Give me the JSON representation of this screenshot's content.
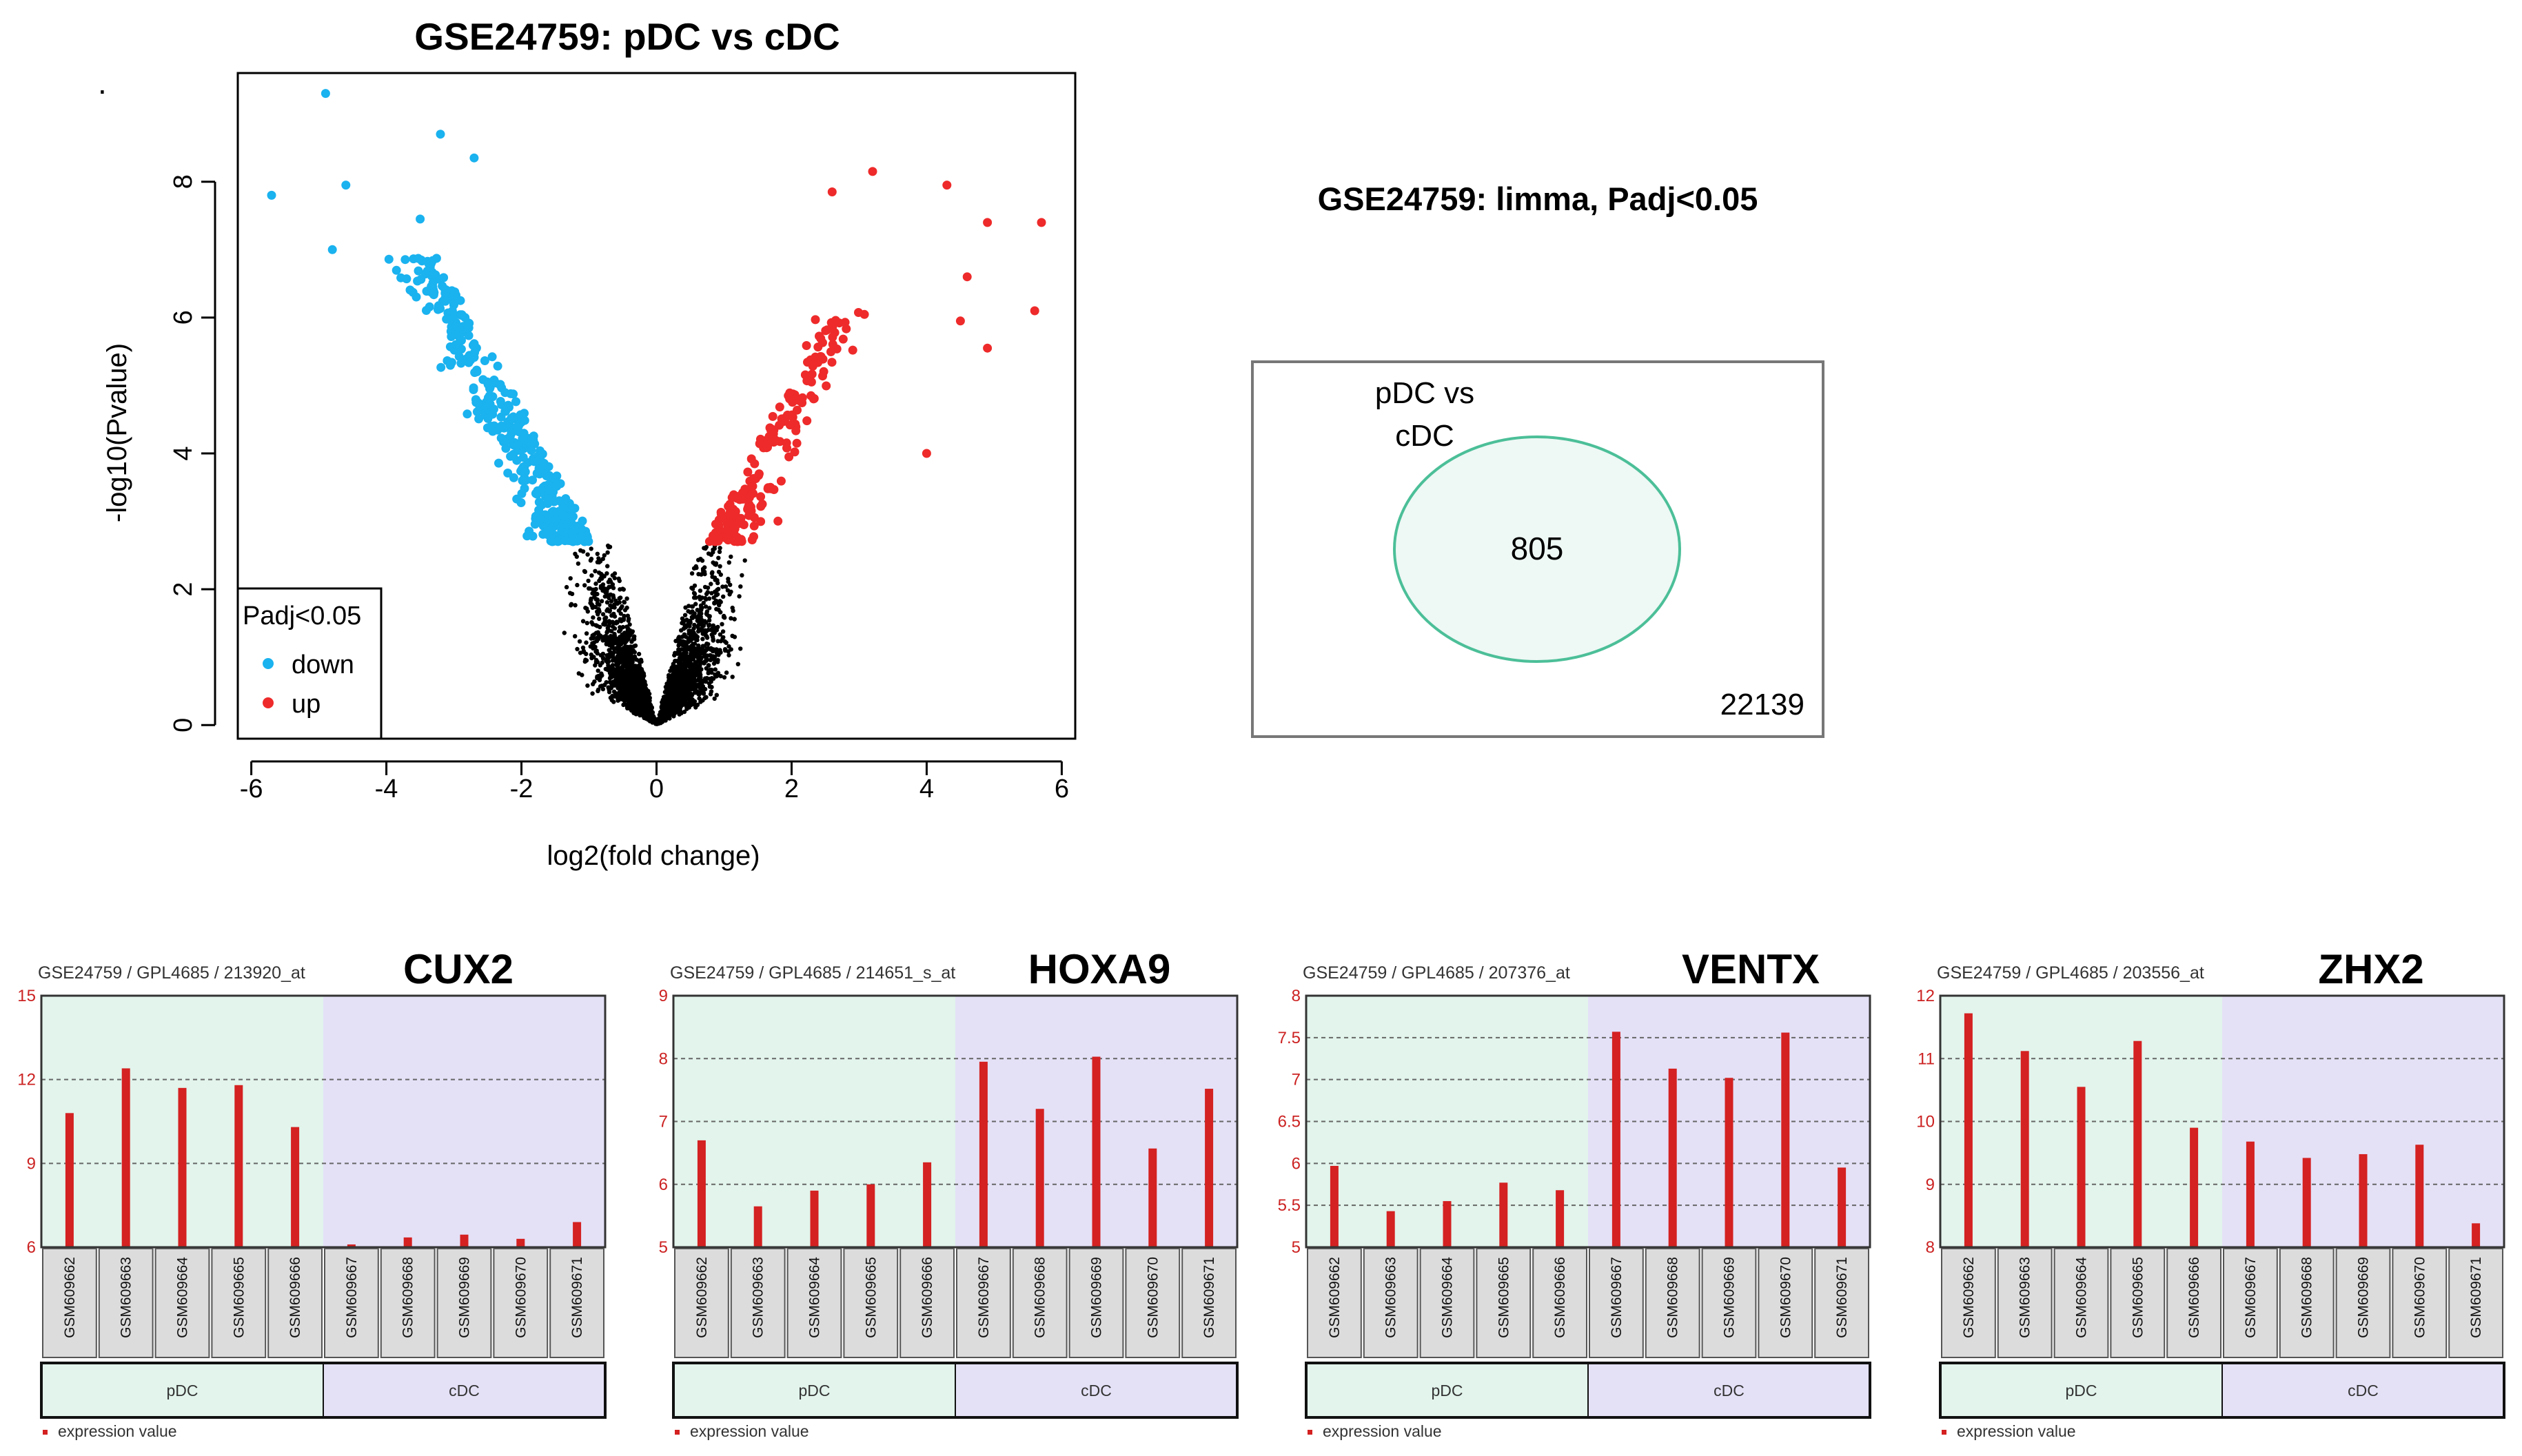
{
  "stray_mark": ".",
  "chart_data": [
    {
      "type": "scatter",
      "title": "GSE24759: pDC vs cDC",
      "xlabel": "log2(fold change)",
      "ylabel": "-log10(Pvalue)",
      "xlim": [
        -6.2,
        6.2
      ],
      "ylim": [
        -0.2,
        9.6
      ],
      "xticks": [
        "-6",
        "-4",
        "-2",
        "0",
        "2",
        "4",
        "6"
      ],
      "yticks": [
        "0",
        "2",
        "4",
        "6",
        "8"
      ],
      "legend": {
        "title": "Padj<0.05",
        "position": "bottom-left",
        "entries": [
          {
            "label": "down",
            "color": "#1ab2ef"
          },
          {
            "label": "up",
            "color": "#ee2a2a"
          }
        ]
      },
      "significance_threshold": 2.7,
      "counts": {
        "background": 2600,
        "down": 420,
        "up": 200
      },
      "colors": {
        "background": "#000000",
        "down": "#1ab2ef",
        "up": "#ee2a2a"
      },
      "extreme_points": [
        {
          "x": -4.9,
          "y": 9.3,
          "group": "down"
        },
        {
          "x": -5.7,
          "y": 7.8,
          "group": "down"
        },
        {
          "x": -4.6,
          "y": 7.95,
          "group": "down"
        },
        {
          "x": -4.8,
          "y": 7.0,
          "group": "down"
        },
        {
          "x": -3.2,
          "y": 8.7,
          "group": "down"
        },
        {
          "x": -2.7,
          "y": 8.35,
          "group": "down"
        },
        {
          "x": -3.5,
          "y": 7.45,
          "group": "down"
        },
        {
          "x": 3.2,
          "y": 8.15,
          "group": "up"
        },
        {
          "x": 4.3,
          "y": 7.95,
          "group": "up"
        },
        {
          "x": 5.7,
          "y": 7.4,
          "group": "up"
        },
        {
          "x": 4.9,
          "y": 7.4,
          "group": "up"
        },
        {
          "x": 5.6,
          "y": 6.1,
          "group": "up"
        },
        {
          "x": 2.6,
          "y": 7.85,
          "group": "up"
        },
        {
          "x": 4.6,
          "y": 6.6,
          "group": "up"
        },
        {
          "x": 4.0,
          "y": 4.0,
          "group": "up"
        },
        {
          "x": 4.9,
          "y": 5.55,
          "group": "up"
        },
        {
          "x": 4.5,
          "y": 5.95,
          "group": "up"
        }
      ]
    },
    {
      "type": "venn",
      "title": "GSE24759: limma, Padj<0.05",
      "set_label": [
        "pDC vs",
        "cDC"
      ],
      "inside_count": "805",
      "outside_count": "22139",
      "circle_fill": "#eef8f4",
      "circle_stroke": "#4cbf98"
    },
    {
      "type": "bar",
      "gene": "CUX2",
      "subtitle": "GSE24759 / GPL4685 / 213920_at",
      "yticks": [
        "6",
        "9",
        "12",
        "15"
      ],
      "ylim": [
        6,
        15
      ],
      "categories": [
        "GSM609662",
        "GSM609663",
        "GSM609664",
        "GSM609665",
        "GSM609666",
        "GSM609667",
        "GSM609668",
        "GSM609669",
        "GSM609670",
        "GSM609671"
      ],
      "values": [
        10.8,
        12.4,
        11.7,
        11.8,
        10.3,
        6.1,
        6.35,
        6.45,
        6.3,
        6.9
      ],
      "groups": [
        "pDC",
        "cDC"
      ],
      "legend": "expression value"
    },
    {
      "type": "bar",
      "gene": "HOXA9",
      "subtitle": "GSE24759 / GPL4685 / 214651_s_at",
      "yticks": [
        "5",
        "6",
        "7",
        "8",
        "9"
      ],
      "ylim": [
        5,
        9
      ],
      "categories": [
        "GSM609662",
        "GSM609663",
        "GSM609664",
        "GSM609665",
        "GSM609666",
        "GSM609667",
        "GSM609668",
        "GSM609669",
        "GSM609670",
        "GSM609671"
      ],
      "values": [
        6.7,
        5.65,
        5.9,
        6.0,
        6.35,
        7.95,
        7.2,
        8.03,
        6.57,
        7.52
      ],
      "groups": [
        "pDC",
        "cDC"
      ],
      "legend": "expression value"
    },
    {
      "type": "bar",
      "gene": "VENTX",
      "subtitle": "GSE24759 / GPL4685 / 207376_at",
      "yticks": [
        "5",
        "5.5",
        "6",
        "6.5",
        "7",
        "7.5",
        "8"
      ],
      "ylim": [
        5,
        8
      ],
      "categories": [
        "GSM609662",
        "GSM609663",
        "GSM609664",
        "GSM609665",
        "GSM609666",
        "GSM609667",
        "GSM609668",
        "GSM609669",
        "GSM609670",
        "GSM609671"
      ],
      "values": [
        5.97,
        5.43,
        5.55,
        5.77,
        5.68,
        7.57,
        7.13,
        7.02,
        7.56,
        5.95
      ],
      "groups": [
        "pDC",
        "cDC"
      ],
      "legend": "expression value"
    },
    {
      "type": "bar",
      "gene": "ZHX2",
      "subtitle": "GSE24759 / GPL4685 / 203556_at",
      "yticks": [
        "8",
        "9",
        "10",
        "11",
        "12"
      ],
      "ylim": [
        8,
        12
      ],
      "categories": [
        "GSM609662",
        "GSM609663",
        "GSM609664",
        "GSM609665",
        "GSM609666",
        "GSM609667",
        "GSM609668",
        "GSM609669",
        "GSM609670",
        "GSM609671"
      ],
      "values": [
        11.72,
        11.12,
        10.55,
        11.28,
        9.9,
        9.68,
        9.42,
        9.48,
        9.63,
        8.38
      ],
      "groups": [
        "pDC",
        "cDC"
      ],
      "legend": "expression value"
    }
  ]
}
